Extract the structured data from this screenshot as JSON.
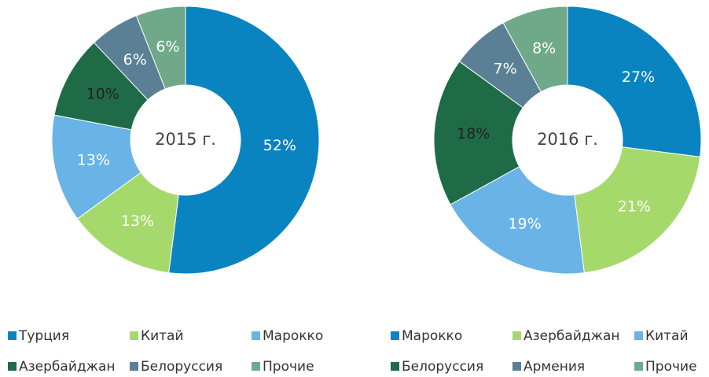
{
  "chart_data": [
    {
      "type": "pie",
      "title": "2015 г.",
      "categories": [
        "Турция",
        "Китай",
        "Марокко",
        "Азербайджан",
        "Белоруссия",
        "Прочие"
      ],
      "values": [
        52,
        13,
        13,
        10,
        6,
        6
      ],
      "value_labels": [
        "52%",
        "13%",
        "13%",
        "10%",
        "6%",
        "6%"
      ],
      "colors": [
        "#0a84c1",
        "#a6d96c",
        "#69b3e6",
        "#1f6b48",
        "#5b7f94",
        "#6fa98a"
      ]
    },
    {
      "type": "pie",
      "title": "2016 г.",
      "categories": [
        "Марокко",
        "Азербайджан",
        "Китай",
        "Белоруссия",
        "Армения",
        "Прочие"
      ],
      "values": [
        27,
        21,
        19,
        18,
        7,
        8
      ],
      "value_labels": [
        "27%",
        "21%",
        "19%",
        "18%",
        "7%",
        "8%"
      ],
      "colors": [
        "#0a84c1",
        "#a6d96c",
        "#69b3e6",
        "#1f6b48",
        "#5b7f94",
        "#6fa98a"
      ]
    }
  ]
}
